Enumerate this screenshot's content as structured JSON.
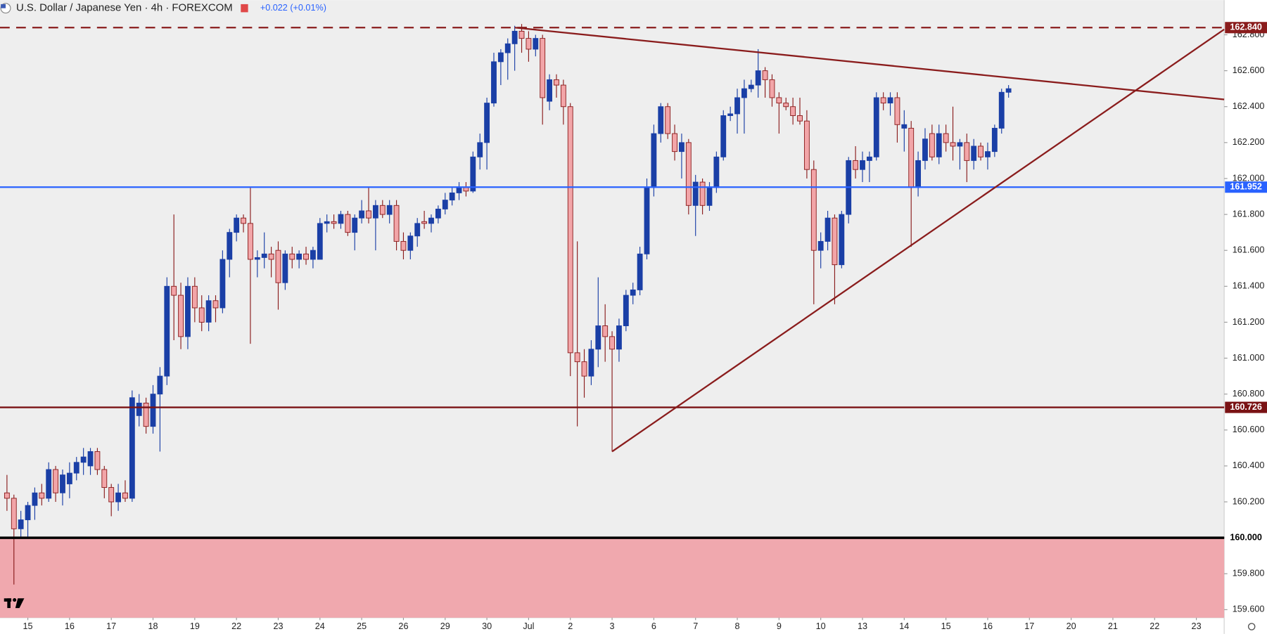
{
  "chart_data": {
    "type": "candlestick",
    "title": "U.S. Dollar / Japanese Yen · 4h · FOREXCOM",
    "change_label": "+0.022 (+0.01%)",
    "up_color": "#1a3fa6",
    "down_color": "#f2a5a8",
    "down_border": "#8a1c1c",
    "background": "#eeeeee",
    "grid": false,
    "xlim": [
      -4,
      172
    ],
    "ylim": [
      159.555,
      162.993
    ],
    "xticks": [
      {
        "value": 0,
        "label": "15"
      },
      {
        "value": 6,
        "label": "16"
      },
      {
        "value": 12,
        "label": "17"
      },
      {
        "value": 18,
        "label": "18"
      },
      {
        "value": 24,
        "label": "19"
      },
      {
        "value": 30,
        "label": "22"
      },
      {
        "value": 36,
        "label": "23"
      },
      {
        "value": 42,
        "label": "24"
      },
      {
        "value": 48,
        "label": "25"
      },
      {
        "value": 54,
        "label": "26"
      },
      {
        "value": 60,
        "label": "29"
      },
      {
        "value": 66,
        "label": "30"
      },
      {
        "value": 72,
        "label": "Jul"
      },
      {
        "value": 78,
        "label": "2"
      },
      {
        "value": 84,
        "label": "3"
      },
      {
        "value": 90,
        "label": "6"
      },
      {
        "value": 96,
        "label": "7"
      },
      {
        "value": 102,
        "label": "8"
      },
      {
        "value": 108,
        "label": "9"
      },
      {
        "value": 114,
        "label": "10"
      },
      {
        "value": 120,
        "label": "13"
      },
      {
        "value": 126,
        "label": "14"
      },
      {
        "value": 132,
        "label": "15"
      },
      {
        "value": 138,
        "label": "16"
      },
      {
        "value": 144,
        "label": "17"
      },
      {
        "value": 150,
        "label": "20"
      },
      {
        "value": 156,
        "label": "21"
      },
      {
        "value": 162,
        "label": "22"
      },
      {
        "value": 168,
        "label": "23"
      }
    ],
    "yticks": [
      {
        "value": 159.6,
        "label": "159.600"
      },
      {
        "value": 159.8,
        "label": "159.800"
      },
      {
        "value": 160.0,
        "label": "160.000"
      },
      {
        "value": 160.2,
        "label": "160.200"
      },
      {
        "value": 160.4,
        "label": "160.400"
      },
      {
        "value": 160.6,
        "label": "160.600"
      },
      {
        "value": 160.8,
        "label": "160.800"
      },
      {
        "value": 161.0,
        "label": "161.000"
      },
      {
        "value": 161.2,
        "label": "161.200"
      },
      {
        "value": 161.4,
        "label": "161.400"
      },
      {
        "value": 161.6,
        "label": "161.600"
      },
      {
        "value": 161.8,
        "label": "161.800"
      },
      {
        "value": 162.0,
        "label": "162.000"
      },
      {
        "value": 162.2,
        "label": "162.200"
      },
      {
        "value": 162.4,
        "label": "162.400"
      },
      {
        "value": 162.6,
        "label": "162.600"
      },
      {
        "value": 162.8,
        "label": "162.800"
      }
    ],
    "shaded_below": 160.0,
    "shade_color": "#f0a8ae",
    "levels": [
      {
        "value": 162.84,
        "label": "162.840",
        "color": "#8a1c1c",
        "dashed": true
      },
      {
        "value": 161.952,
        "label": "161.952",
        "color": "#2962ff",
        "dashed": false
      },
      {
        "value": 160.726,
        "label": "160.726",
        "color": "#7a1214",
        "dashed": false
      },
      {
        "value": 160.0,
        "label": "160.000",
        "color": "#000000",
        "dashed": false
      }
    ],
    "trendlines": [
      {
        "color": "#8a1c1c",
        "x": [
          70,
          172
        ],
        "y": [
          162.84,
          162.44
        ]
      },
      {
        "color": "#8a1c1c",
        "x": [
          84,
          172
        ],
        "y": [
          160.48,
          162.83
        ]
      }
    ],
    "x": [
      -3,
      -2,
      -1,
      0,
      1,
      2,
      3,
      4,
      5,
      6,
      7,
      8,
      9,
      10,
      11,
      12,
      13,
      14,
      15,
      16,
      17,
      18,
      19,
      20,
      21,
      22,
      23,
      24,
      25,
      26,
      27,
      28,
      29,
      30,
      31,
      32,
      33,
      34,
      35,
      36,
      37,
      38,
      39,
      40,
      41,
      42,
      43,
      44,
      45,
      46,
      47,
      48,
      49,
      50,
      51,
      52,
      53,
      54,
      55,
      56,
      57,
      58,
      59,
      60,
      61,
      62,
      63,
      64,
      65,
      66,
      67,
      68,
      69,
      70,
      71,
      72,
      73,
      74,
      75,
      76,
      77,
      78,
      79,
      80,
      81,
      82,
      83,
      84,
      85,
      86,
      87,
      88,
      89,
      90,
      91,
      92,
      93,
      94,
      95,
      96,
      97,
      98,
      99,
      100,
      101,
      102,
      103,
      104,
      105,
      106,
      107,
      108,
      109,
      110,
      111,
      112,
      113,
      114,
      115,
      116,
      117,
      118,
      119,
      120,
      121,
      122,
      123,
      124,
      125,
      126,
      127,
      128,
      129,
      130,
      131,
      132,
      133,
      134,
      135,
      136,
      137,
      138,
      139,
      140,
      141
    ],
    "open": [
      160.25,
      160.22,
      160.05,
      160.1,
      160.18,
      160.25,
      160.22,
      160.38,
      160.25,
      160.3,
      160.36,
      160.42,
      160.4,
      160.48,
      160.38,
      160.28,
      160.2,
      160.25,
      160.22,
      160.68,
      160.75,
      160.62,
      160.8,
      160.9,
      161.4,
      161.35,
      161.12,
      161.4,
      161.28,
      161.2,
      161.32,
      161.28,
      161.55,
      161.7,
      161.78,
      161.75,
      161.55,
      161.56,
      161.58,
      161.6,
      161.42,
      161.58,
      161.55,
      161.58,
      161.55,
      161.55,
      161.75,
      161.76,
      161.75,
      161.8,
      161.7,
      161.78,
      161.82,
      161.78,
      161.85,
      161.8,
      161.85,
      161.65,
      161.6,
      161.68,
      161.76,
      161.75,
      161.78,
      161.83,
      161.88,
      161.92,
      161.95,
      161.93,
      162.12,
      162.2,
      162.42,
      162.65,
      162.7,
      162.75,
      162.82,
      162.78,
      162.72,
      162.78,
      162.43,
      162.55,
      162.52,
      162.4,
      161.03,
      160.98,
      160.9,
      161.05,
      161.18,
      161.12,
      161.05,
      161.18,
      161.35,
      161.38,
      161.58,
      161.95,
      162.25,
      162.4,
      162.25,
      162.15,
      162.2,
      161.85,
      161.98,
      161.85,
      161.95,
      162.12,
      162.35,
      162.36,
      162.45,
      162.5,
      162.52,
      162.6,
      162.55,
      162.45,
      162.42,
      162.4,
      162.35,
      162.32,
      162.05,
      161.6,
      161.65,
      161.78,
      161.52,
      161.8,
      162.1,
      162.05,
      162.1,
      162.12,
      162.45,
      162.42,
      162.45,
      162.28,
      162.28,
      161.95,
      162.1,
      162.25,
      162.12,
      162.25,
      162.2,
      162.18,
      162.2,
      162.1,
      162.18,
      162.12,
      162.15,
      162.28,
      162.48
    ],
    "high": [
      160.35,
      160.24,
      160.15,
      160.2,
      160.28,
      160.3,
      160.42,
      160.4,
      160.38,
      160.42,
      160.45,
      160.5,
      160.5,
      160.5,
      160.4,
      160.3,
      160.3,
      160.32,
      160.82,
      160.8,
      160.78,
      160.85,
      160.95,
      161.45,
      161.8,
      161.42,
      161.45,
      161.45,
      161.35,
      161.35,
      161.35,
      161.6,
      161.72,
      161.8,
      161.8,
      161.95,
      161.6,
      161.7,
      161.62,
      161.65,
      161.6,
      161.62,
      161.6,
      161.62,
      161.62,
      161.78,
      161.8,
      161.8,
      161.82,
      161.82,
      161.8,
      161.88,
      161.95,
      161.88,
      161.88,
      161.88,
      161.88,
      161.7,
      161.7,
      161.78,
      161.82,
      161.8,
      161.85,
      161.92,
      161.95,
      161.98,
      161.98,
      162.15,
      162.25,
      162.45,
      162.7,
      162.72,
      162.78,
      162.85,
      162.86,
      162.82,
      162.8,
      162.8,
      162.58,
      162.58,
      162.55,
      162.42,
      161.65,
      161.05,
      161.1,
      161.45,
      161.3,
      161.15,
      161.22,
      161.38,
      161.42,
      161.62,
      162.0,
      162.3,
      162.42,
      162.42,
      162.3,
      162.25,
      162.22,
      162.02,
      162.0,
      161.98,
      162.15,
      162.38,
      162.4,
      162.5,
      162.55,
      162.55,
      162.72,
      162.62,
      162.58,
      162.48,
      162.45,
      162.45,
      162.45,
      162.38,
      162.1,
      161.7,
      161.82,
      161.8,
      161.82,
      162.12,
      162.18,
      162.15,
      162.15,
      162.48,
      162.48,
      162.48,
      162.48,
      162.38,
      162.32,
      162.15,
      162.28,
      162.3,
      162.3,
      162.3,
      162.4,
      162.22,
      162.25,
      162.22,
      162.2,
      162.2,
      162.3,
      162.5,
      162.52
    ],
    "low": [
      160.15,
      159.74,
      160.0,
      160.0,
      160.1,
      160.18,
      160.2,
      160.2,
      160.18,
      160.22,
      160.32,
      160.35,
      160.35,
      160.35,
      160.22,
      160.12,
      160.15,
      160.2,
      160.2,
      160.62,
      160.58,
      160.58,
      160.48,
      160.85,
      161.1,
      161.05,
      161.05,
      161.2,
      161.15,
      161.15,
      161.2,
      161.25,
      161.45,
      161.65,
      161.7,
      161.08,
      161.45,
      161.5,
      161.45,
      161.27,
      161.38,
      161.5,
      161.5,
      161.52,
      161.5,
      161.55,
      161.7,
      161.72,
      161.72,
      161.68,
      161.6,
      161.75,
      161.75,
      161.6,
      161.78,
      161.75,
      161.6,
      161.55,
      161.55,
      161.62,
      161.72,
      161.7,
      161.75,
      161.8,
      161.85,
      161.88,
      161.9,
      161.92,
      162.05,
      162.05,
      162.4,
      162.52,
      162.55,
      162.6,
      162.7,
      162.65,
      162.68,
      162.3,
      162.38,
      162.45,
      162.3,
      160.9,
      160.62,
      160.78,
      160.85,
      160.95,
      160.98,
      160.48,
      160.98,
      161.15,
      161.3,
      161.35,
      161.55,
      161.9,
      162.2,
      162.22,
      162.1,
      162.0,
      161.8,
      161.68,
      161.8,
      161.82,
      161.92,
      162.1,
      162.32,
      162.25,
      162.25,
      162.48,
      162.45,
      162.45,
      162.4,
      162.25,
      162.38,
      162.3,
      162.3,
      162.0,
      161.3,
      161.5,
      161.6,
      161.3,
      161.5,
      161.75,
      162.0,
      161.98,
      161.98,
      162.1,
      162.38,
      162.35,
      162.2,
      162.15,
      161.62,
      161.9,
      162.05,
      162.1,
      162.08,
      162.15,
      162.1,
      162.05,
      161.98,
      162.05,
      162.1,
      162.05,
      162.12,
      162.25,
      162.45
    ],
    "close": [
      160.22,
      160.05,
      160.1,
      160.18,
      160.25,
      160.22,
      160.38,
      160.25,
      160.35,
      160.36,
      160.42,
      160.45,
      160.48,
      160.38,
      160.28,
      160.2,
      160.25,
      160.22,
      160.78,
      160.75,
      160.62,
      160.8,
      160.9,
      161.4,
      161.35,
      161.12,
      161.4,
      161.28,
      161.2,
      161.32,
      161.28,
      161.55,
      161.7,
      161.78,
      161.75,
      161.55,
      161.56,
      161.58,
      161.55,
      161.42,
      161.58,
      161.55,
      161.58,
      161.55,
      161.6,
      161.75,
      161.76,
      161.75,
      161.8,
      161.7,
      161.78,
      161.82,
      161.78,
      161.85,
      161.8,
      161.85,
      161.65,
      161.6,
      161.68,
      161.75,
      161.75,
      161.78,
      161.83,
      161.88,
      161.92,
      161.95,
      161.93,
      162.12,
      162.2,
      162.42,
      162.65,
      162.7,
      162.75,
      162.82,
      162.78,
      162.72,
      162.78,
      162.45,
      162.55,
      162.52,
      162.4,
      161.03,
      160.98,
      160.9,
      161.05,
      161.18,
      161.12,
      161.05,
      161.18,
      161.35,
      161.38,
      161.58,
      161.95,
      162.25,
      162.4,
      162.25,
      162.15,
      162.2,
      161.85,
      161.98,
      161.85,
      161.95,
      162.12,
      162.35,
      162.36,
      162.45,
      162.5,
      162.52,
      162.6,
      162.55,
      162.45,
      162.42,
      162.4,
      162.35,
      162.32,
      162.05,
      161.6,
      161.65,
      161.78,
      161.52,
      161.8,
      162.1,
      162.05,
      162.1,
      162.12,
      162.45,
      162.42,
      162.45,
      162.3,
      162.3,
      161.95,
      162.1,
      162.22,
      162.12,
      162.25,
      162.2,
      162.18,
      162.2,
      162.1,
      162.18,
      162.12,
      162.15,
      162.28,
      162.48,
      162.5
    ]
  }
}
